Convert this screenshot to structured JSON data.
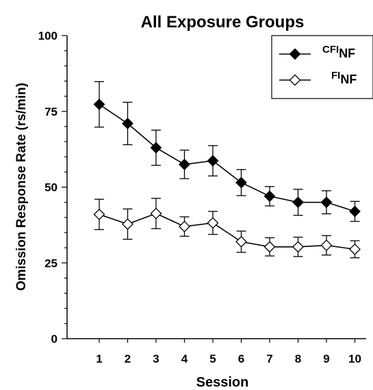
{
  "chart_data": {
    "type": "line",
    "title": "All Exposure Groups",
    "xlabel": "Session",
    "ylabel": "Omission Response Rate (rs/min)",
    "ylim": [
      0,
      100
    ],
    "yticks": [
      0,
      25,
      50,
      75,
      100
    ],
    "x": [
      1,
      2,
      3,
      4,
      5,
      6,
      7,
      8,
      9,
      10
    ],
    "legend_position": "top-right",
    "series": [
      {
        "name": "CFI",
        "subscript": "NF",
        "marker": "filled-diamond",
        "color": "#000000",
        "values": [
          77.3,
          71.0,
          63.0,
          57.5,
          58.7,
          51.5,
          47.0,
          45.0,
          45.0,
          42.0
        ],
        "error": [
          7.5,
          7.0,
          5.8,
          4.7,
          5.0,
          4.3,
          3.2,
          4.3,
          3.8,
          3.3
        ]
      },
      {
        "name": "FI",
        "subscript": "NF",
        "marker": "open-diamond",
        "color": "#000000",
        "values": [
          41.0,
          37.8,
          41.3,
          37.0,
          38.2,
          32.0,
          30.3,
          30.3,
          30.8,
          29.5
        ],
        "error": [
          5.0,
          5.0,
          5.0,
          3.2,
          3.8,
          3.5,
          3.0,
          3.2,
          3.2,
          2.8
        ]
      }
    ]
  }
}
